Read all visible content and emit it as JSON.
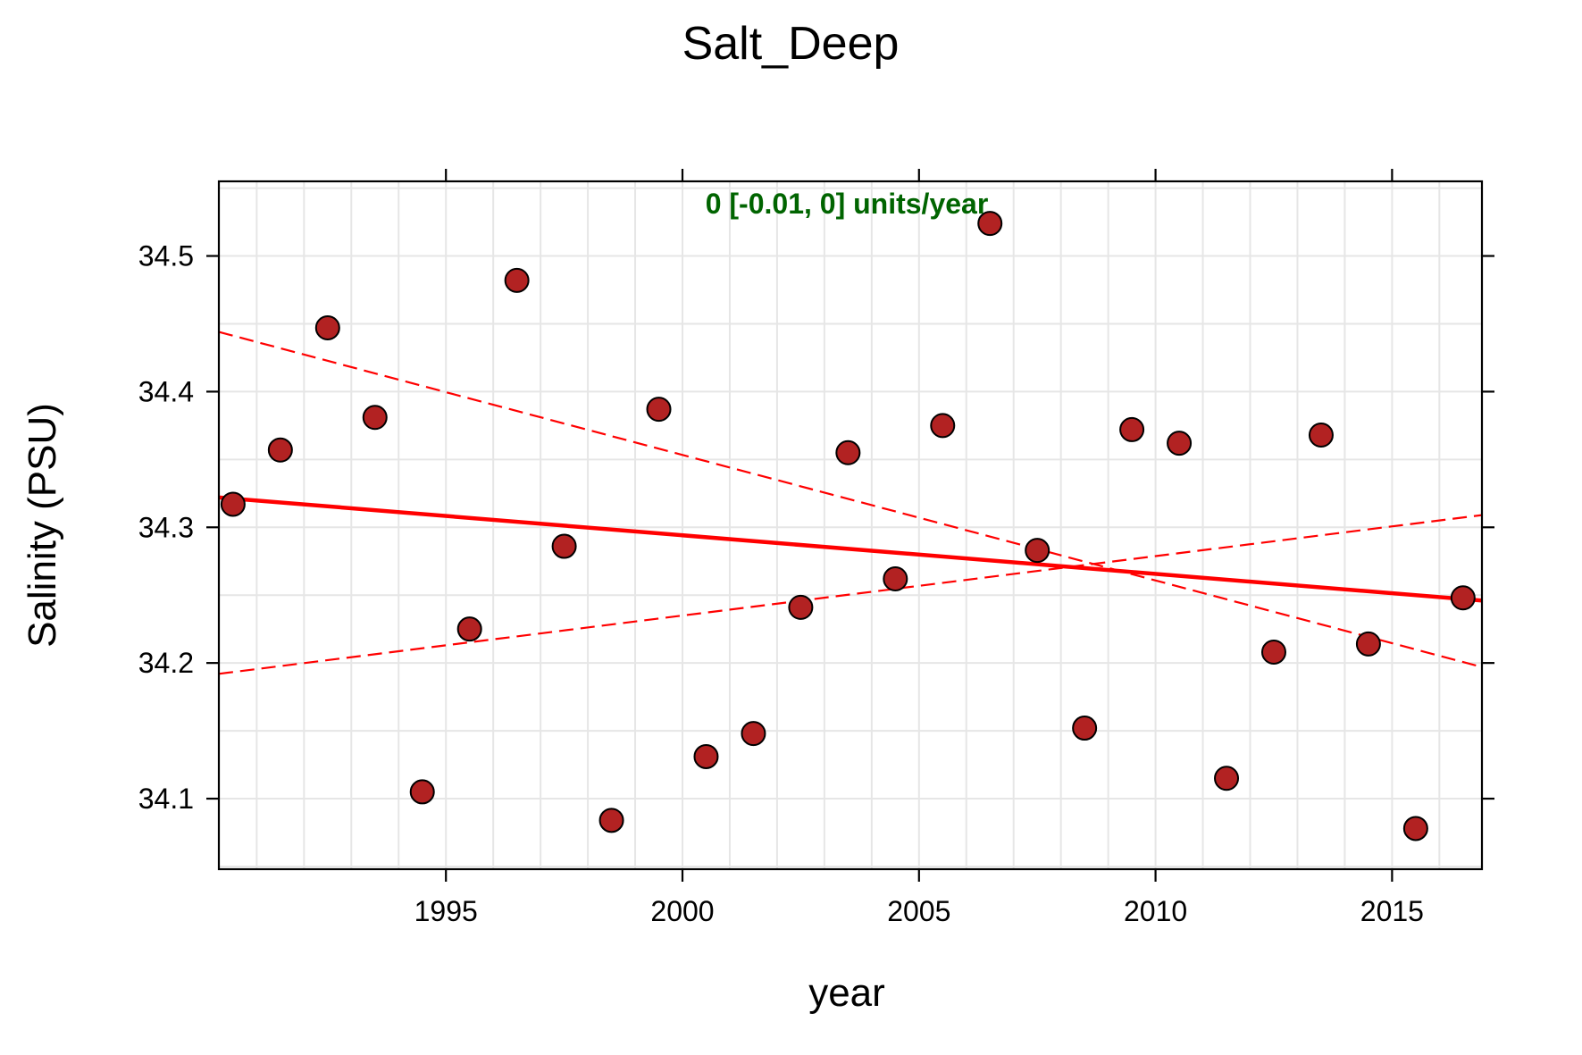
{
  "chart_data": {
    "type": "scatter",
    "title": "Salt_Deep",
    "xlabel": "year",
    "ylabel": "Salinity (PSU)",
    "annotation": "0 [-0.01, 0] units/year",
    "xlim": [
      1990.2,
      2016.9
    ],
    "ylim": [
      34.048,
      34.555
    ],
    "xticks": [
      1995,
      2000,
      2005,
      2010,
      2015
    ],
    "yticks": [
      34.1,
      34.2,
      34.3,
      34.4,
      34.5
    ],
    "grid": true,
    "colors": {
      "points": "#b22222",
      "trend": "#ff0000",
      "annotation": "#006400"
    },
    "points": {
      "x": [
        1990.5,
        1991.5,
        1992.5,
        1993.5,
        1994.5,
        1995.5,
        1996.5,
        1997.5,
        1998.5,
        1999.5,
        2000.5,
        2001.5,
        2002.5,
        2003.5,
        2004.5,
        2005.5,
        2006.5,
        2007.5,
        2008.5,
        2009.5,
        2010.5,
        2011.5,
        2012.5,
        2013.5,
        2014.5,
        2015.5,
        2016.5
      ],
      "y": [
        34.317,
        34.357,
        34.447,
        34.381,
        34.105,
        34.225,
        34.482,
        34.286,
        34.084,
        34.387,
        34.131,
        34.148,
        34.241,
        34.355,
        34.262,
        34.375,
        34.524,
        34.283,
        34.152,
        34.372,
        34.362,
        34.115,
        34.208,
        34.368,
        34.214,
        34.078,
        34.248
      ]
    },
    "trend_line": {
      "x": [
        1990.2,
        2016.9
      ],
      "y": [
        34.322,
        34.246
      ]
    },
    "ci_upper": {
      "x": [
        1990.2,
        2016.9
      ],
      "y": [
        34.444,
        34.197
      ]
    },
    "ci_lower": {
      "x": [
        1990.2,
        2016.9
      ],
      "y": [
        34.192,
        34.309
      ]
    }
  }
}
